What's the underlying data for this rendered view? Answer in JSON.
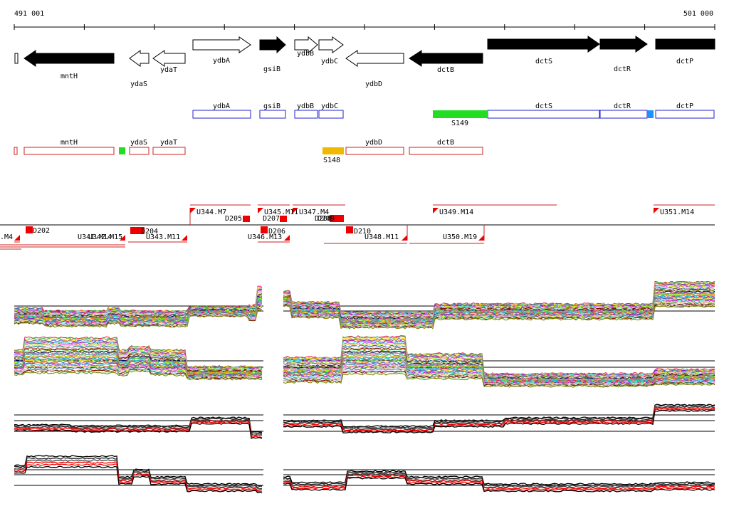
{
  "coordinate_start": "491 001",
  "coordinate_end": "501 000",
  "colors": {
    "gene_fill": "#000000",
    "protein_box": "#2222cc",
    "rna_box": "#cc2222",
    "sigma_green": "#22dd22",
    "sigma_orange": "#f0b800",
    "sigma_blue": "#1e90ff",
    "segment_red": "#ee0000",
    "trace_red": "#ee0000"
  },
  "genes": [
    {
      "id": "g0",
      "label": ""
    },
    {
      "id": "g1",
      "label": "mntH"
    },
    {
      "id": "g2",
      "label": "ydaS"
    },
    {
      "id": "g3",
      "label": "ydaT"
    },
    {
      "id": "g4",
      "label": "ydbA"
    },
    {
      "id": "g5",
      "label": "gsiB"
    },
    {
      "id": "g6",
      "label": "ydbB"
    },
    {
      "id": "g7",
      "label": "ydbC"
    },
    {
      "id": "g8",
      "label": "ydbD"
    },
    {
      "id": "g9",
      "label": "dctB"
    },
    {
      "id": "g10",
      "label": "dctS"
    },
    {
      "id": "g11",
      "label": "dctR"
    },
    {
      "id": "g12",
      "label": "dctP"
    }
  ],
  "protein_track": [
    {
      "id": "p1",
      "label": "ydbA"
    },
    {
      "id": "p2",
      "label": "gsiB"
    },
    {
      "id": "p3",
      "label": "ydbB"
    },
    {
      "id": "p4",
      "label": "ydbC"
    },
    {
      "id": "p5",
      "label": "dctS"
    },
    {
      "id": "p6",
      "label": "dctR"
    },
    {
      "id": "p7",
      "label": "dctP"
    }
  ],
  "sigma_track_1": [
    {
      "id": "s149",
      "label": "S149"
    }
  ],
  "rna_track": [
    {
      "id": "r1",
      "label": "mntH"
    },
    {
      "id": "r2",
      "label": "ydaS"
    },
    {
      "id": "r3",
      "label": "ydaT"
    },
    {
      "id": "r4",
      "label": "ydbD"
    },
    {
      "id": "r5",
      "label": "dctB"
    }
  ],
  "sigma_track_2": [
    {
      "id": "s148",
      "label": "S148"
    }
  ],
  "segments_upper": [
    {
      "id": "u344",
      "label": "U344.M7"
    },
    {
      "id": "u345",
      "label": "U345.M11"
    },
    {
      "id": "u347",
      "label": "U347.M4"
    },
    {
      "id": "u349",
      "label": "U349.M14"
    },
    {
      "id": "u351",
      "label": "U351.M14"
    }
  ],
  "segments_lower": [
    {
      "id": "m4",
      "label": ".M4"
    },
    {
      "id": "u341",
      "label": "U341.M14"
    },
    {
      "id": "u342",
      "label": "U342.M15"
    },
    {
      "id": "u343",
      "label": "U343.M11"
    },
    {
      "id": "u346",
      "label": "U346.M13"
    },
    {
      "id": "u348",
      "label": "U348.M11"
    },
    {
      "id": "u350",
      "label": "U350.M19"
    }
  ],
  "down_labels": [
    {
      "id": "d202",
      "label": "D202"
    },
    {
      "id": "d204",
      "label": "D204"
    },
    {
      "id": "d205",
      "label": "D205"
    },
    {
      "id": "d206",
      "label": "D206"
    },
    {
      "id": "d207",
      "label": "D207"
    },
    {
      "id": "d208",
      "label": "D208"
    },
    {
      "id": "d209",
      "label": "D209"
    },
    {
      "id": "d210",
      "label": "D210"
    }
  ]
}
